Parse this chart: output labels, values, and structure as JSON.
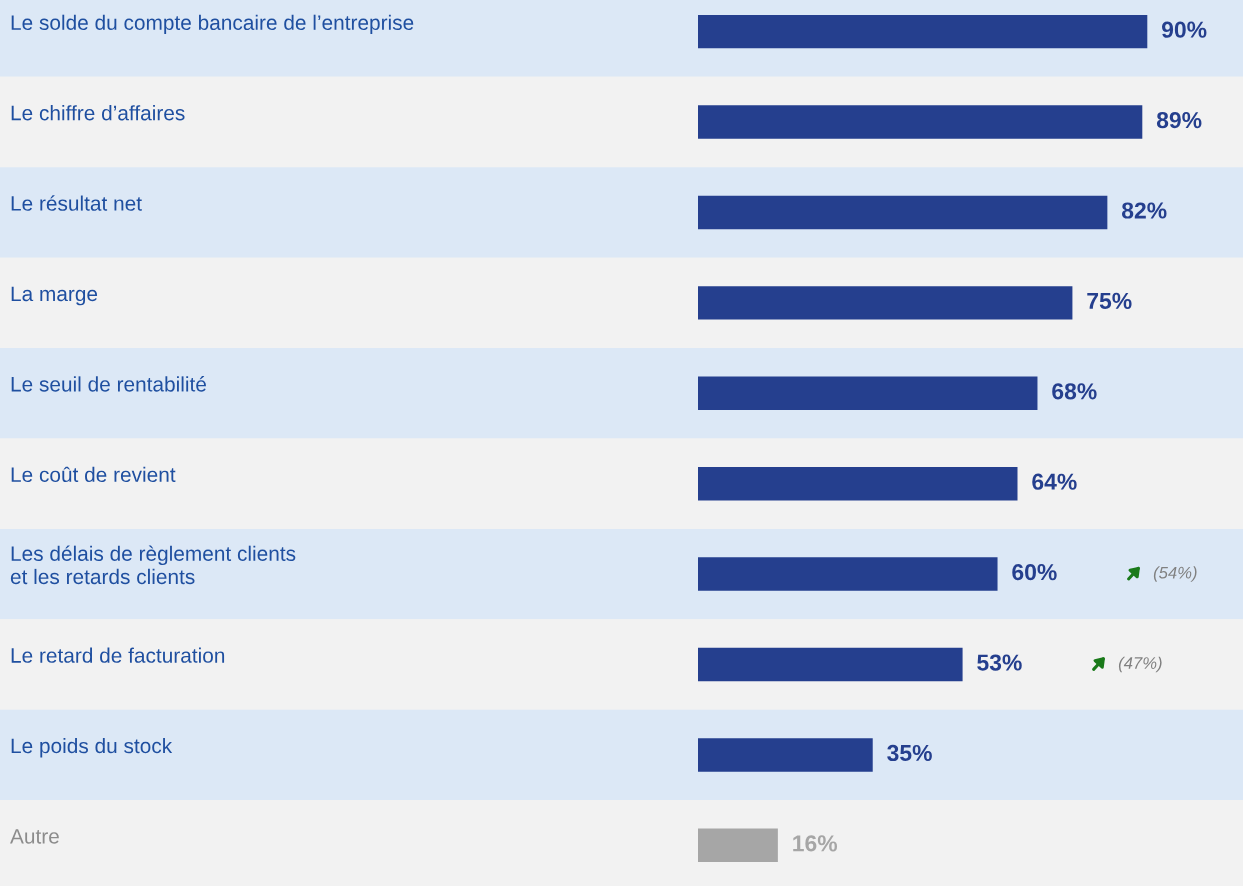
{
  "chart_data": {
    "type": "bar",
    "orientation": "horizontal",
    "categories": [
      "Le solde du compte bancaire de l’entreprise",
      "Le chiffre d’affaires",
      "Le résultat net",
      "La marge",
      "Le seuil de rentabilité",
      "Le coût de revient",
      "Les délais de règlement clients\net les retards clients",
      "Le retard de facturation",
      "Le poids du stock",
      "Autre"
    ],
    "values": [
      90,
      89,
      82,
      75,
      68,
      64,
      60,
      53,
      35,
      16
    ],
    "colors": [
      "#253f8e",
      "#253f8e",
      "#253f8e",
      "#253f8e",
      "#253f8e",
      "#253f8e",
      "#253f8e",
      "#253f8e",
      "#253f8e",
      "#a6a6a6"
    ],
    "value_labels": [
      "90%",
      "89%",
      "82%",
      "75%",
      "68%",
      "64%",
      "60%",
      "53%",
      "35%",
      "16%"
    ],
    "annotations": [
      "(54%)",
      "(47%)"
    ]
  }
}
